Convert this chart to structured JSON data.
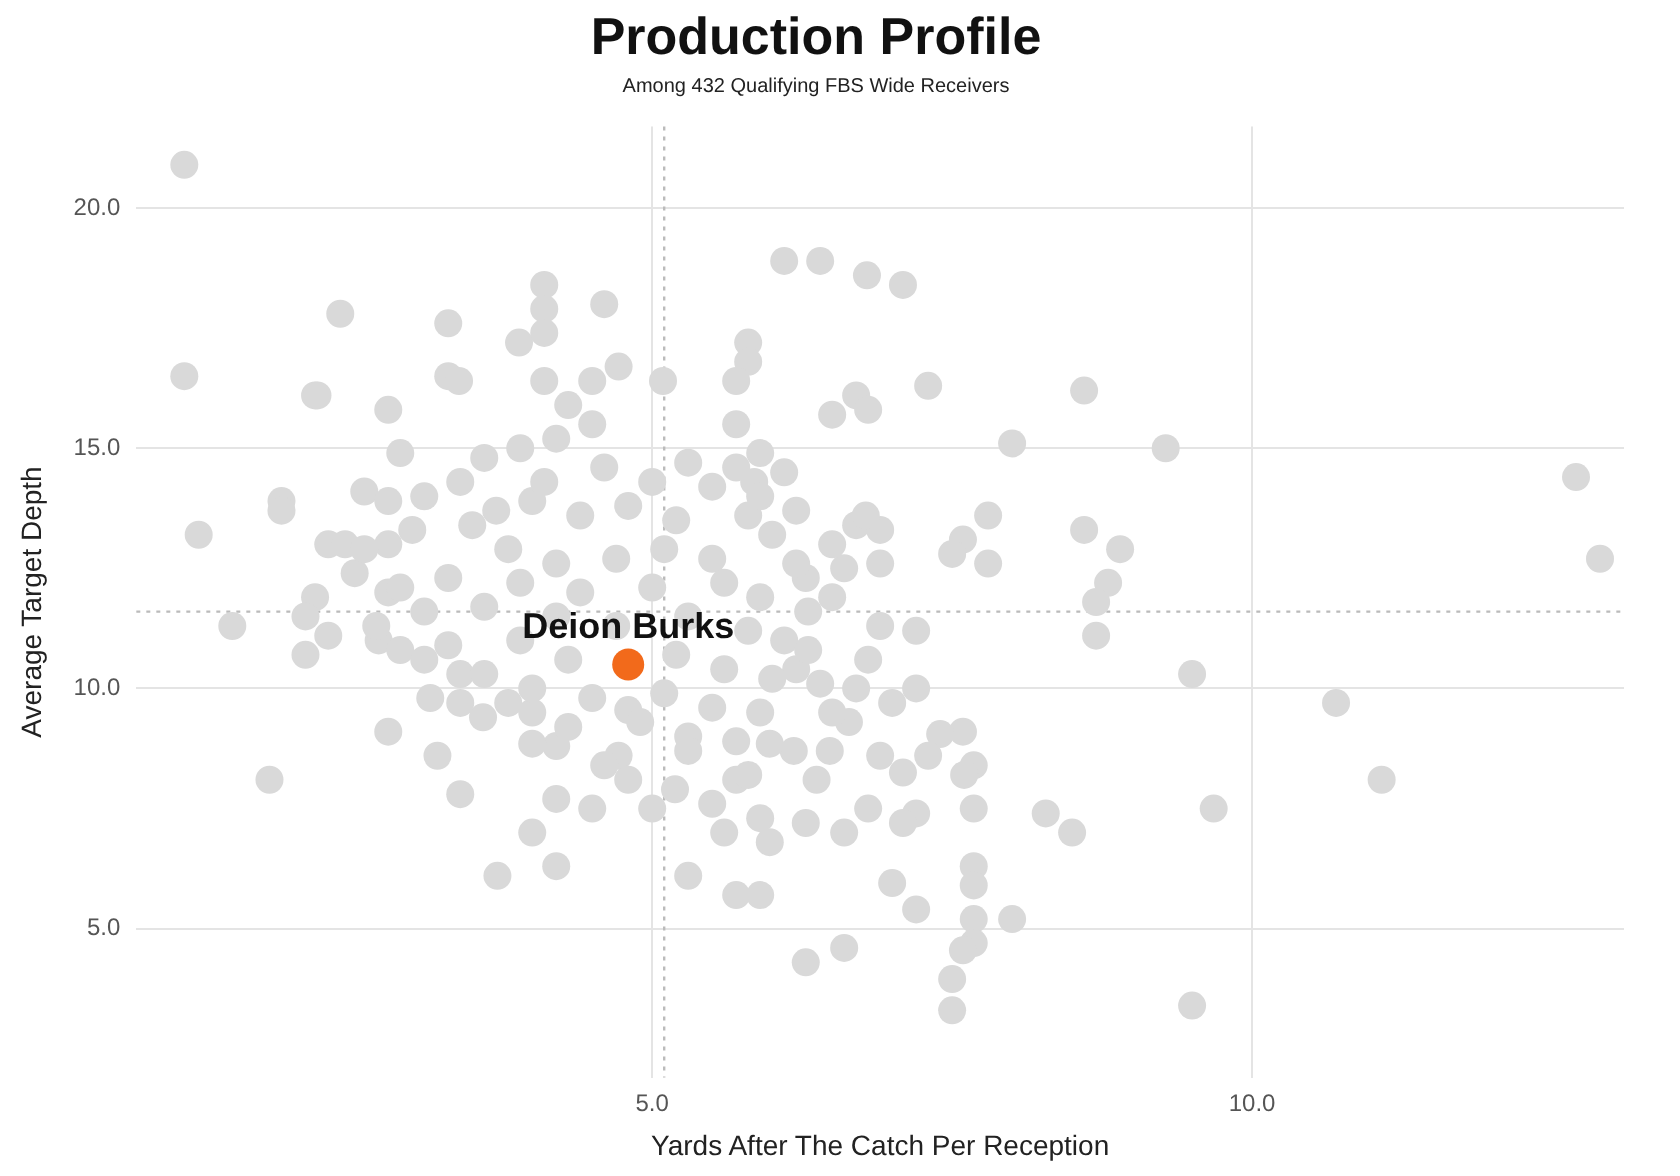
{
  "chart_data": {
    "type": "scatter",
    "title": "Production Profile",
    "subtitle": "Among 432 Qualifying FBS Wide Receivers",
    "xlabel": "Yards After The Catch Per Reception",
    "ylabel": "Average Target Depth",
    "xlim": [
      0.7,
      13.1
    ],
    "ylim": [
      1.9,
      21.7
    ],
    "xticks": [
      {
        "value": 5,
        "label": "5.0"
      },
      {
        "value": 10,
        "label": "10.0"
      }
    ],
    "yticks": [
      {
        "value": 5,
        "label": "5.0"
      },
      {
        "value": 10,
        "label": "10.0"
      },
      {
        "value": 15,
        "label": "15.0"
      },
      {
        "value": 20,
        "label": "20.0"
      }
    ],
    "grid": true,
    "legend": false,
    "marker": "circle",
    "ref_lines": [
      {
        "axis": "x",
        "value": 5.1,
        "line_style": "dotted",
        "color": "#bbbbbb"
      },
      {
        "axis": "y",
        "value": 11.6,
        "line_style": "dotted",
        "color": "#bbbbbb"
      }
    ],
    "series": [
      {
        "color": "#d9d9d9",
        "x": [
          1.1,
          1.1,
          1.22,
          1.5,
          1.81,
          2.19,
          2.4,
          1.91,
          1.91,
          2.8,
          3.3,
          4.1,
          4.1,
          4.1,
          3.89,
          4.6,
          3.3,
          3.39,
          4.1,
          4.5,
          4.72,
          5.09,
          2.21,
          2.9,
          2.6,
          2.8,
          2.8,
          2.3,
          2.44,
          2.52,
          2.8,
          2.19,
          2.11,
          2.11,
          2.3,
          2.72,
          2.9,
          3.1,
          3.4,
          3.15,
          2.8,
          3.21,
          3.4,
          3.59,
          3.8,
          4.0,
          4.2,
          4.0,
          4.2,
          4.5,
          4.0,
          3.71,
          4.2,
          4.72,
          4.8,
          5.0,
          4.8,
          6.1,
          6.4,
          6.79,
          7.09,
          5.8,
          5.8,
          5.7,
          7.3,
          8.6,
          6.7,
          6.8,
          6.5,
          5.7,
          8.0,
          9.28,
          5.9,
          6.1,
          5.7,
          5.85,
          7.8,
          8.6,
          8.9,
          8.8,
          8.7,
          8.7,
          7.59,
          7.5,
          7.8,
          6.9,
          6.6,
          6.5,
          6.9,
          6.7,
          6.78,
          6.2,
          6.28,
          6.5,
          6.9,
          7.2,
          9.5,
          9.68,
          9.5,
          8.5,
          8.28,
          7.68,
          7.68,
          7.6,
          7.59,
          7.4,
          7.2,
          7.0,
          7.3,
          7.09,
          6.9,
          7.2,
          7.09,
          6.8,
          6.6,
          7.68,
          7.68,
          7.0,
          7.2,
          8.0,
          7.68,
          7.68,
          7.59,
          7.5,
          7.5,
          6.6,
          6.28,
          5.7,
          5.9,
          5.3,
          5.6,
          5.98,
          6.28,
          6.48,
          6.18,
          5.9,
          5.5,
          5.19,
          6.37,
          5.7,
          6.2,
          6.4,
          6.7,
          6.64,
          5.98,
          5.3,
          5.7,
          12.7,
          12.9,
          10.7,
          11.08,
          4.3,
          4.5,
          4.2,
          3.9,
          3.6,
          4.6,
          5.0,
          5.3,
          5.5,
          3.4,
          3.1,
          4.0,
          4.4,
          4.8,
          5.2,
          5.8,
          6.0,
          3.5,
          3.0,
          2.6,
          3.8,
          4.2,
          4.7,
          5.1,
          5.5,
          6.2,
          3.3,
          2.9,
          3.9,
          4.4,
          5.0,
          5.6,
          5.9,
          6.3,
          3.1,
          3.6,
          4.2,
          4.7,
          5.3,
          5.8,
          6.1,
          2.7,
          3.3,
          3.9,
          4.3,
          5.2,
          5.6,
          6.0,
          3.6,
          4.0,
          4.5,
          5.1,
          5.5,
          5.9,
          3.4,
          4.3,
          4.9,
          5.3,
          4.6,
          5.8,
          6.5,
          6.8,
          6.3,
          4.1,
          3.7,
          5.9
        ],
        "values": [
          20.9,
          16.5,
          13.2,
          11.3,
          8.1,
          16.1,
          17.8,
          13.9,
          13.7,
          15.8,
          17.6,
          18.4,
          17.9,
          17.4,
          17.2,
          18.0,
          16.5,
          16.4,
          16.4,
          16.4,
          16.7,
          16.4,
          16.1,
          14.9,
          14.1,
          13.9,
          13.0,
          13.0,
          13.0,
          12.4,
          12.0,
          11.9,
          11.5,
          10.7,
          11.1,
          11.0,
          10.8,
          10.6,
          10.3,
          9.8,
          9.1,
          8.6,
          7.8,
          9.4,
          9.7,
          9.5,
          8.8,
          8.85,
          7.7,
          7.5,
          7.0,
          6.1,
          6.3,
          8.6,
          8.1,
          7.5,
          9.55,
          18.9,
          18.9,
          18.6,
          18.4,
          17.2,
          16.8,
          16.4,
          16.3,
          16.2,
          16.1,
          15.8,
          15.7,
          15.5,
          15.1,
          15.0,
          14.9,
          14.5,
          14.6,
          14.3,
          13.6,
          13.3,
          12.9,
          12.2,
          11.8,
          11.1,
          13.1,
          12.8,
          12.6,
          12.6,
          12.5,
          13.0,
          13.3,
          13.4,
          13.6,
          13.7,
          12.3,
          11.9,
          11.3,
          11.2,
          10.3,
          7.5,
          3.4,
          7.0,
          7.4,
          7.5,
          8.4,
          8.2,
          9.1,
          9.05,
          10.0,
          9.7,
          8.6,
          8.25,
          8.6,
          7.4,
          7.2,
          7.5,
          7.0,
          6.3,
          5.9,
          5.95,
          5.4,
          5.2,
          5.2,
          4.7,
          4.55,
          3.95,
          3.3,
          4.6,
          4.3,
          5.7,
          5.7,
          6.1,
          7.0,
          6.8,
          7.2,
          8.7,
          8.7,
          7.3,
          7.6,
          7.9,
          8.1,
          8.1,
          10.4,
          10.1,
          10.0,
          9.3,
          8.85,
          9.0,
          8.9,
          14.4,
          12.7,
          9.7,
          8.1,
          15.9,
          15.5,
          15.2,
          15.0,
          14.8,
          14.6,
          14.3,
          14.7,
          14.2,
          14.3,
          14.0,
          13.9,
          13.6,
          13.8,
          13.5,
          13.6,
          13.2,
          13.4,
          13.3,
          12.9,
          12.9,
          12.6,
          12.7,
          12.9,
          12.7,
          12.6,
          12.3,
          12.1,
          12.2,
          12.0,
          12.1,
          12.2,
          11.9,
          11.6,
          11.6,
          11.7,
          11.5,
          11.3,
          11.5,
          11.2,
          11.0,
          11.3,
          10.9,
          11.0,
          10.6,
          10.7,
          10.4,
          10.2,
          10.3,
          10.0,
          9.8,
          9.9,
          9.6,
          9.5,
          9.7,
          9.2,
          9.3,
          8.7,
          8.4,
          8.2,
          9.5,
          10.6,
          10.8,
          14.3,
          13.7,
          14.0
        ]
      },
      {
        "name": "Deion Burks",
        "color": "#f26a1b",
        "x": [
          4.8
        ],
        "values": [
          10.5
        ]
      }
    ]
  }
}
